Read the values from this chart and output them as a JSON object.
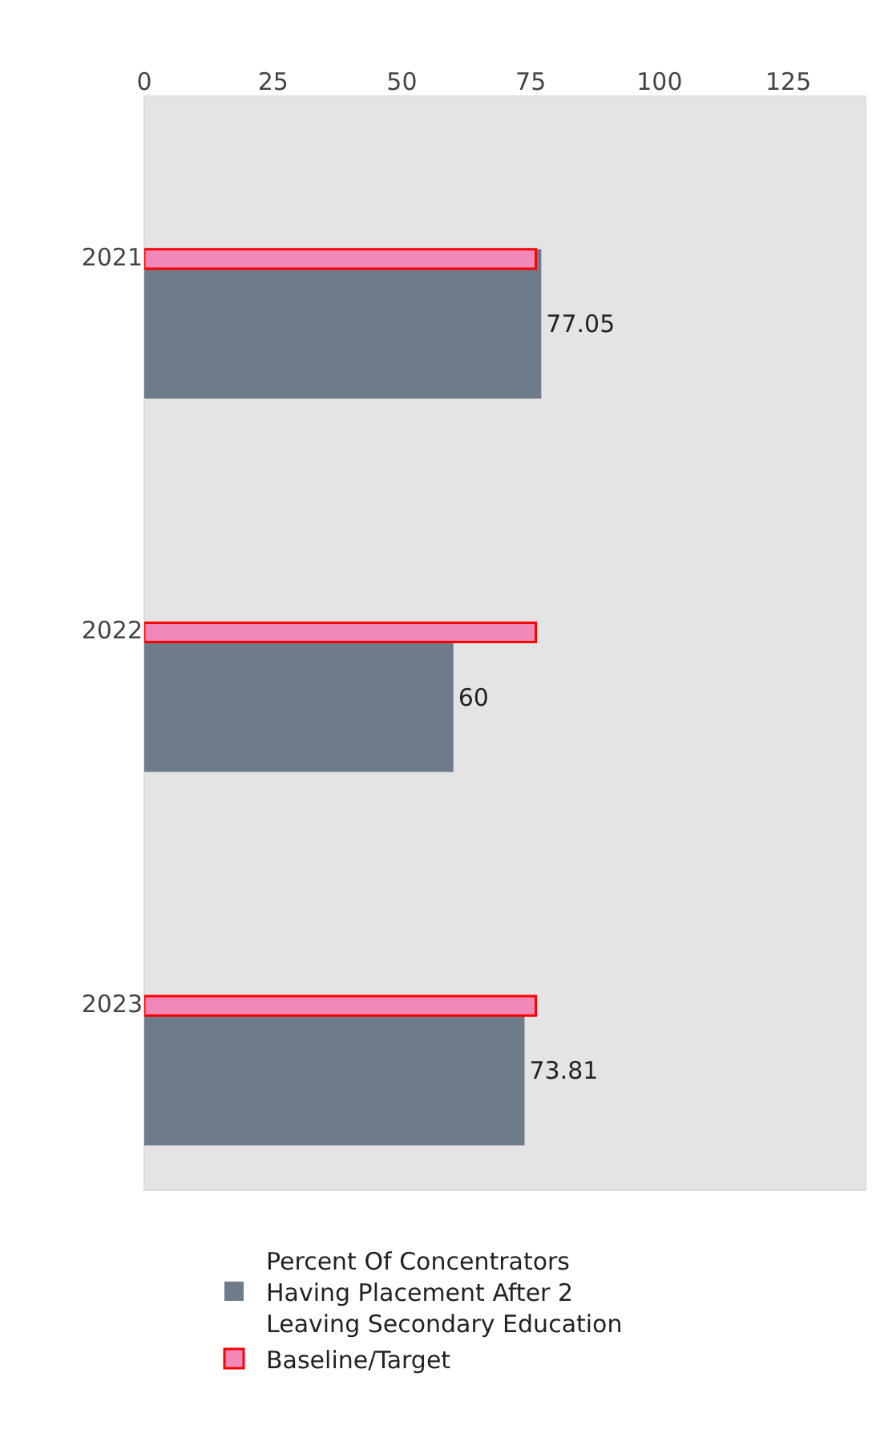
{
  "chart_data": {
    "type": "bar",
    "orientation": "horizontal",
    "categories": [
      "2021",
      "2022",
      "2023"
    ],
    "series": [
      {
        "name": "Percent Of Concentrators Having Placement After 2 Leaving Secondary Education",
        "color": "#6e7b8b",
        "values": [
          77.05,
          60,
          73.81
        ],
        "value_labels": [
          "77.05",
          "60",
          "73.81"
        ]
      },
      {
        "name": "Baseline/Target",
        "color": "#f088b8",
        "values": [
          76,
          76,
          76
        ]
      }
    ],
    "xlim": [
      0,
      140
    ],
    "xticks": [
      0,
      25,
      50,
      75,
      100,
      125
    ],
    "grid": false,
    "legend": "bottom"
  }
}
